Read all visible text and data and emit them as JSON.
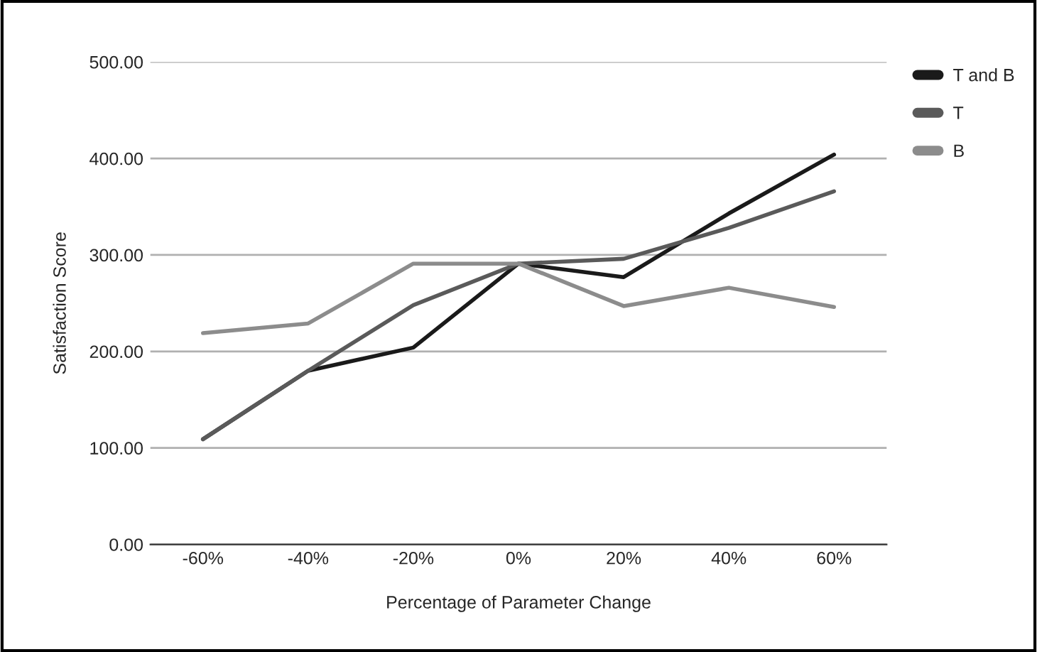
{
  "chart_data": {
    "type": "line",
    "xlabel": "Percentage of Parameter Change",
    "ylabel": "Satisfaction Score",
    "categories": [
      "-60%",
      "-40%",
      "-20%",
      "0%",
      "20%",
      "40%",
      "60%"
    ],
    "series": [
      {
        "name": "T and B",
        "color": "#1a1a1a",
        "values": [
          109,
          180,
          204,
          291,
          277,
          343,
          404
        ]
      },
      {
        "name": "T",
        "color": "#5a5a5a",
        "values": [
          109,
          180,
          248,
          291,
          296,
          328,
          366
        ]
      },
      {
        "name": "B",
        "color": "#8c8c8c",
        "values": [
          219,
          229,
          291,
          291,
          247,
          266,
          246
        ]
      }
    ],
    "ylim": [
      0,
      500
    ],
    "yticks": [
      {
        "value": 0,
        "label": "0.00"
      },
      {
        "value": 100,
        "label": "100.00"
      },
      {
        "value": 200,
        "label": "200.00"
      },
      {
        "value": 300,
        "label": "300.00"
      },
      {
        "value": 400,
        "label": "400.00"
      },
      {
        "value": 500,
        "label": "500.00"
      }
    ],
    "grid": "y",
    "legend": "top right",
    "marker": "none",
    "line_style": "solid"
  }
}
